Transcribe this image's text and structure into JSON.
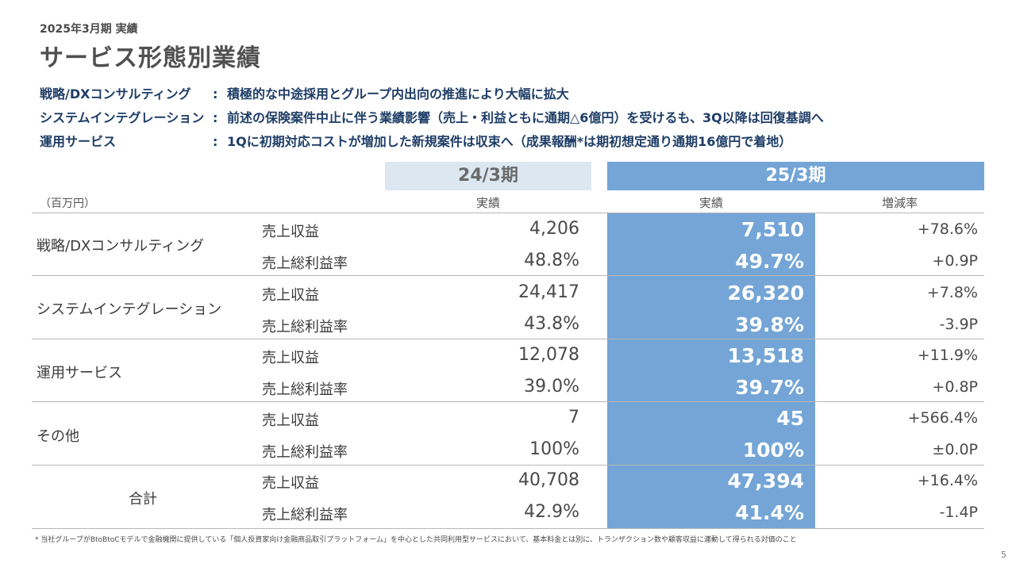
{
  "period_label": "2025年3月期 実績",
  "title": "サービス形態別業績",
  "summary": [
    {
      "segment": "戦略/DXコンサルティング",
      "colon": ":",
      "text": "積極的な中途採用とグループ内出向の推進により大幅に拡大"
    },
    {
      "segment": "システムインテグレーション",
      "colon": ":",
      "text": "前述の保険案件中止に伴う業績影響（売上・利益ともに通期△6億円）を受けるも、3Q以降は回復基調へ"
    },
    {
      "segment": "運用サービス",
      "colon": ":",
      "text": "1Qに初期対応コストが増加した新規案件は収束へ（成果報酬*は期初想定通り通期16億円で着地）"
    }
  ],
  "table": {
    "unit": "（百万円）",
    "prev_header": "24/3期",
    "cur_header": "25/3期",
    "prev_sub": "実績",
    "cur_sub": "実績",
    "change_sub": "増減率",
    "rows": [
      {
        "segment": "戦略/DXコンサルティング",
        "revenue_label": "売上収益",
        "revenue_prev": "4,206",
        "revenue_cur": "7,510",
        "revenue_chg": "+78.6%",
        "margin_label": "売上総利益率",
        "margin_prev": "48.8%",
        "margin_cur": "49.7%",
        "margin_chg": "+0.9P"
      },
      {
        "segment": "システムインテグレーション",
        "revenue_label": "売上収益",
        "revenue_prev": "24,417",
        "revenue_cur": "26,320",
        "revenue_chg": "+7.8%",
        "margin_label": "売上総利益率",
        "margin_prev": "43.8%",
        "margin_cur": "39.8%",
        "margin_chg": "-3.9P"
      },
      {
        "segment": "運用サービス",
        "revenue_label": "売上収益",
        "revenue_prev": "12,078",
        "revenue_cur": "13,518",
        "revenue_chg": "+11.9%",
        "margin_label": "売上総利益率",
        "margin_prev": "39.0%",
        "margin_cur": "39.7%",
        "margin_chg": "+0.8P"
      },
      {
        "segment": "その他",
        "revenue_label": "売上収益",
        "revenue_prev": "7",
        "revenue_cur": "45",
        "revenue_chg": "+566.4%",
        "margin_label": "売上総利益率",
        "margin_prev": "100%",
        "margin_cur": "100%",
        "margin_chg": "±0.0P"
      },
      {
        "segment": "合計",
        "revenue_label": "売上収益",
        "revenue_prev": "40,708",
        "revenue_cur": "47,394",
        "revenue_chg": "+16.4%",
        "margin_label": "売上総利益率",
        "margin_prev": "42.9%",
        "margin_cur": "41.4%",
        "margin_chg": "-1.4P"
      }
    ]
  },
  "footnote": "* 当社グループがBtoBtoCモデルで金融機関に提供している「個人投資家向け金融商品取引プラットフォーム」を中心とした共同利用型サービスにおいて、基本料金とは別に、トランザクション数や顧客収益に連動して得られる対価のこと",
  "page_number": "5",
  "colors": {
    "header_prev_bg": "#dde7f1",
    "header_cur_bg": "#74a5d6",
    "summary_text": "#1e3d66"
  }
}
